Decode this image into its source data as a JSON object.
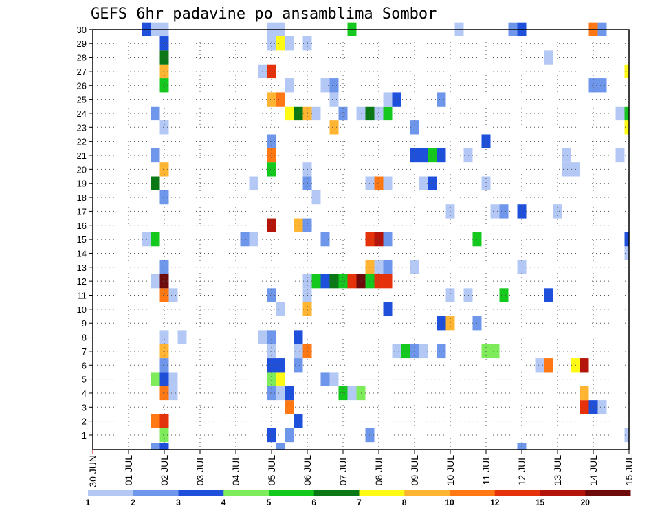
{
  "chart_data": {
    "type": "heatmap",
    "title": "GEFS 6hr padavine po ansamblima Sombor",
    "y_ticks": [
      "1",
      "2",
      "3",
      "4",
      "5",
      "6",
      "7",
      "8",
      "9",
      "10",
      "11",
      "12",
      "13",
      "14",
      "15",
      "16",
      "17",
      "18",
      "19",
      "20",
      "21",
      "22",
      "23",
      "24",
      "25",
      "26",
      "27",
      "28",
      "29",
      "30"
    ],
    "x_ticks": [
      "30 JUN",
      "01 JUL",
      "02 JUL",
      "03 JUL",
      "04 JUL",
      "05 JUL",
      "06 JUL",
      "07 JUL",
      "08 JUL",
      "09 JUL",
      "10 JUL",
      "11 JUL",
      "12 JUL",
      "13 JUL",
      "14 JUL",
      "15 JUL"
    ],
    "x_range_days": [
      0,
      15
    ],
    "y_range": [
      0,
      30
    ],
    "grid": true,
    "legend_placement": "bottom",
    "colorbar": {
      "labels": [
        "1",
        "2",
        "3",
        "4",
        "5",
        "6",
        "7",
        "8",
        "10",
        "12",
        "15",
        "20"
      ],
      "colors": [
        "#B4C8F5",
        "#6E96EB",
        "#1E50DC",
        "#7DEB5A",
        "#14C81E",
        "#0A7814",
        "#FFFA14",
        "#FFB432",
        "#FF7814",
        "#E6320A",
        "#B4140A",
        "#6E0A0A"
      ]
    },
    "ensemble_precip_mm": [
      {
        "member": 1,
        "cells": [
          [
            2,
            4
          ],
          [
            5,
            3
          ],
          [
            5.5,
            2
          ],
          [
            7.75,
            2
          ],
          [
            15,
            1
          ]
        ]
      },
      {
        "member": 2,
        "cells": [
          [
            1.75,
            11
          ],
          [
            2,
            14
          ],
          [
            5.75,
            3
          ]
        ]
      },
      {
        "member": 3,
        "cells": [
          [
            5.5,
            11
          ],
          [
            13.75,
            12
          ],
          [
            14,
            3
          ],
          [
            14.25,
            1
          ]
        ]
      },
      {
        "member": 4,
        "cells": [
          [
            2,
            11
          ],
          [
            2.25,
            1
          ],
          [
            5,
            2
          ],
          [
            5.25,
            1
          ],
          [
            5.5,
            3
          ],
          [
            7,
            5
          ],
          [
            7.25,
            1
          ],
          [
            7.5,
            4
          ],
          [
            13.75,
            9
          ]
        ]
      },
      {
        "member": 5,
        "cells": [
          [
            1.75,
            4
          ],
          [
            2,
            3
          ],
          [
            2.25,
            1
          ],
          [
            5,
            4
          ],
          [
            5.25,
            7
          ],
          [
            6.5,
            2
          ],
          [
            6.75,
            1
          ]
        ]
      },
      {
        "member": 6,
        "cells": [
          [
            2,
            2
          ],
          [
            5,
            3
          ],
          [
            5.25,
            3
          ],
          [
            5.75,
            2
          ],
          [
            12.5,
            1
          ],
          [
            12.75,
            11
          ],
          [
            13.5,
            7
          ],
          [
            13.75,
            16
          ]
        ]
      },
      {
        "member": 7,
        "cells": [
          [
            2,
            9
          ],
          [
            5,
            1
          ],
          [
            5.75,
            1
          ],
          [
            6,
            10
          ],
          [
            8.5,
            1
          ],
          [
            8.75,
            5
          ],
          [
            9,
            2
          ],
          [
            9.25,
            1
          ],
          [
            9.75,
            2
          ],
          [
            11,
            4
          ],
          [
            11.25,
            4
          ]
        ]
      },
      {
        "member": 8,
        "cells": [
          [
            2,
            1
          ],
          [
            2.5,
            1
          ],
          [
            4.75,
            1
          ],
          [
            5,
            2
          ],
          [
            5.75,
            3
          ]
        ]
      },
      {
        "member": 9,
        "cells": [
          [
            9.75,
            3
          ],
          [
            10,
            9
          ],
          [
            10.75,
            2
          ]
        ]
      },
      {
        "member": 10,
        "cells": [
          [
            5.25,
            1
          ],
          [
            6,
            9
          ],
          [
            8.25,
            3
          ]
        ]
      },
      {
        "member": 11,
        "cells": [
          [
            2,
            11
          ],
          [
            2.25,
            1
          ],
          [
            5,
            2
          ],
          [
            6,
            1
          ],
          [
            10,
            1
          ],
          [
            10.5,
            1
          ],
          [
            11.5,
            5
          ],
          [
            12.75,
            3
          ]
        ]
      },
      {
        "member": 12,
        "cells": [
          [
            1.75,
            1
          ],
          [
            2,
            20
          ],
          [
            6,
            1
          ],
          [
            6.25,
            5
          ],
          [
            6.5,
            3
          ],
          [
            6.75,
            6
          ],
          [
            7,
            5
          ],
          [
            7.25,
            14
          ],
          [
            7.5,
            20
          ],
          [
            7.75,
            5
          ],
          [
            8,
            14
          ],
          [
            8.25,
            12
          ]
        ]
      },
      {
        "member": 13,
        "cells": [
          [
            2,
            2
          ],
          [
            7.75,
            8
          ],
          [
            8,
            1
          ],
          [
            8.25,
            2
          ],
          [
            9,
            1
          ],
          [
            12,
            1
          ]
        ]
      },
      {
        "member": 14,
        "cells": [
          [
            15,
            1
          ]
        ]
      },
      {
        "member": 15,
        "cells": [
          [
            1.5,
            1
          ],
          [
            1.75,
            5
          ],
          [
            4.25,
            2
          ],
          [
            4.5,
            1
          ],
          [
            6.5,
            2
          ],
          [
            7.75,
            12
          ],
          [
            8,
            16
          ],
          [
            8.25,
            2
          ],
          [
            10.75,
            5
          ],
          [
            15,
            3
          ]
        ]
      },
      {
        "member": 16,
        "cells": [
          [
            5,
            16
          ],
          [
            5.75,
            8
          ],
          [
            6,
            2
          ]
        ]
      },
      {
        "member": 17,
        "cells": [
          [
            10,
            1
          ],
          [
            11.25,
            1
          ],
          [
            11.5,
            2
          ],
          [
            12,
            3
          ],
          [
            13,
            1
          ]
        ]
      },
      {
        "member": 18,
        "cells": [
          [
            2,
            2
          ],
          [
            6.25,
            1
          ]
        ]
      },
      {
        "member": 19,
        "cells": [
          [
            1.75,
            6
          ],
          [
            4.5,
            1
          ],
          [
            6,
            2
          ],
          [
            7.75,
            1
          ],
          [
            8,
            10
          ],
          [
            8.25,
            1
          ],
          [
            9.25,
            1
          ],
          [
            9.5,
            3
          ],
          [
            11,
            1
          ]
        ]
      },
      {
        "member": 20,
        "cells": [
          [
            2,
            8
          ],
          [
            5,
            5
          ],
          [
            6,
            1
          ],
          [
            13.25,
            1
          ],
          [
            13.5,
            1
          ]
        ]
      },
      {
        "member": 21,
        "cells": [
          [
            1.75,
            2
          ],
          [
            5,
            11
          ],
          [
            9,
            3
          ],
          [
            9.25,
            3
          ],
          [
            9.5,
            5
          ],
          [
            9.75,
            3
          ],
          [
            10.5,
            1
          ],
          [
            13.25,
            1
          ],
          [
            14.75,
            1
          ]
        ]
      },
      {
        "member": 22,
        "cells": [
          [
            5,
            2
          ],
          [
            11,
            3
          ]
        ]
      },
      {
        "member": 23,
        "cells": [
          [
            2,
            1
          ],
          [
            6.75,
            8
          ],
          [
            9,
            2
          ],
          [
            15,
            7
          ]
        ]
      },
      {
        "member": 24,
        "cells": [
          [
            1.75,
            2
          ],
          [
            5.5,
            7
          ],
          [
            5.75,
            6
          ],
          [
            6,
            9
          ],
          [
            6.25,
            1
          ],
          [
            7,
            2
          ],
          [
            7.5,
            1
          ],
          [
            7.75,
            6
          ],
          [
            8,
            1
          ],
          [
            8.25,
            5
          ],
          [
            14.75,
            1
          ],
          [
            15,
            5
          ]
        ]
      },
      {
        "member": 25,
        "cells": [
          [
            5,
            8
          ],
          [
            5.25,
            11
          ],
          [
            6.75,
            1
          ],
          [
            8.25,
            1
          ],
          [
            8.5,
            3
          ],
          [
            9.75,
            2
          ]
        ]
      },
      {
        "member": 26,
        "cells": [
          [
            2,
            5
          ],
          [
            5.5,
            1
          ],
          [
            6.5,
            1
          ],
          [
            6.75,
            2
          ],
          [
            14,
            2
          ],
          [
            14.25,
            2
          ]
        ]
      },
      {
        "member": 27,
        "cells": [
          [
            2,
            8
          ],
          [
            4.75,
            1
          ],
          [
            5,
            12
          ],
          [
            15,
            7
          ]
        ]
      },
      {
        "member": 28,
        "cells": [
          [
            2,
            6
          ],
          [
            12.75,
            1
          ]
        ]
      },
      {
        "member": 29,
        "cells": [
          [
            2,
            3
          ],
          [
            5,
            1
          ],
          [
            5.25,
            7
          ],
          [
            5.5,
            1
          ],
          [
            6,
            1
          ]
        ]
      },
      {
        "member": 30,
        "cells": [
          [
            1.5,
            3
          ],
          [
            1.75,
            1
          ],
          [
            2,
            1
          ],
          [
            5,
            1
          ],
          [
            5.25,
            1
          ],
          [
            7.25,
            5
          ],
          [
            10.25,
            1
          ],
          [
            11.75,
            2
          ],
          [
            12,
            3
          ],
          [
            14,
            11
          ],
          [
            14.25,
            2
          ]
        ]
      }
    ],
    "partial_row_below_1": [
      [
        1.75,
        2
      ],
      [
        2,
        3
      ],
      [
        5.25,
        2
      ],
      [
        12,
        2
      ]
    ]
  }
}
